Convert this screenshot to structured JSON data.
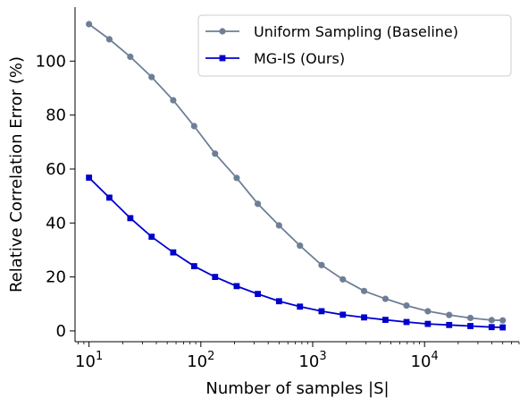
{
  "chart_data": {
    "type": "line",
    "xscale": "log",
    "xlim": [
      7.5,
      70000
    ],
    "ylim": [
      -4,
      120
    ],
    "xlabel": "Number of samples |S|",
    "ylabel": "Relative Correlation Error (%)",
    "x_ticks": [
      {
        "value": 10,
        "base": "10",
        "exp": "1"
      },
      {
        "value": 100,
        "base": "10",
        "exp": "2"
      },
      {
        "value": 1000,
        "base": "10",
        "exp": "3"
      },
      {
        "value": 10000,
        "base": "10",
        "exp": "4"
      }
    ],
    "y_ticks": [
      {
        "value": 0,
        "label": "0"
      },
      {
        "value": 20,
        "label": "20"
      },
      {
        "value": 40,
        "label": "40"
      },
      {
        "value": 60,
        "label": "60"
      },
      {
        "value": 80,
        "label": "80"
      },
      {
        "value": 100,
        "label": "100"
      }
    ],
    "grid": false,
    "legend_position": "top-right",
    "x": [
      10,
      15.2,
      23.4,
      36.3,
      56.6,
      87.1,
      134,
      209,
      323,
      500,
      769,
      1200,
      1860,
      2880,
      4470,
      6900,
      10700,
      16600,
      25700,
      39800,
      50000
    ],
    "series": [
      {
        "name": "Uniform Sampling (Baseline)",
        "color": "#6e7f95",
        "marker": "circle",
        "values": [
          113.7,
          108.1,
          101.6,
          94.1,
          85.5,
          75.9,
          65.7,
          56.7,
          47.1,
          39.1,
          31.6,
          24.4,
          19.1,
          14.8,
          11.9,
          9.4,
          7.3,
          5.9,
          4.8,
          4.0,
          3.9
        ]
      },
      {
        "name": "MG-IS (Ours)",
        "color": "#0000cc",
        "marker": "square",
        "values": [
          56.8,
          49.4,
          41.8,
          34.9,
          29.1,
          24.0,
          20.0,
          16.6,
          13.7,
          11.0,
          9.0,
          7.3,
          6.0,
          5.0,
          4.1,
          3.3,
          2.6,
          2.2,
          1.8,
          1.4,
          1.3
        ]
      }
    ]
  }
}
